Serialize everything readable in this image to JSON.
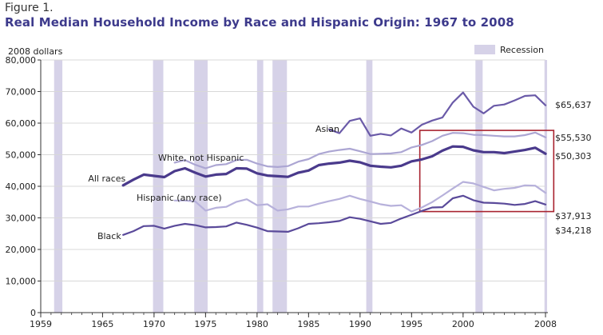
{
  "figure_label": "Figure 1.",
  "title": "Real Median Household Income by Race and Hispanic Origin: 1967 to 2008",
  "chart_data": {
    "type": "line",
    "ylabel": "2008 dollars",
    "xlim": [
      1959,
      2008
    ],
    "ylim": [
      0,
      80000
    ],
    "xticks": [
      1959,
      1965,
      1970,
      1975,
      1980,
      1985,
      1990,
      1995,
      2000,
      2008
    ],
    "xtick_labels": [
      "1959",
      "1965",
      "1970",
      "1975",
      "1980",
      "1985",
      "1990",
      "1995",
      "2000",
      "2008"
    ],
    "yticks": [
      0,
      10000,
      20000,
      30000,
      40000,
      50000,
      60000,
      70000,
      80000
    ],
    "ytick_labels": [
      "0",
      "10,000",
      "20,000",
      "30,000",
      "40,000",
      "50,000",
      "60,000",
      "70,000",
      "80,000"
    ],
    "legend": {
      "label": "Recession",
      "color": "#d6d2e8",
      "placement": "top-right"
    },
    "recessions": [
      [
        1960.3,
        1961.1
      ],
      [
        1969.9,
        1970.9
      ],
      [
        1973.9,
        1975.2
      ],
      [
        1980.0,
        1980.6
      ],
      [
        1981.5,
        1982.9
      ],
      [
        1990.6,
        1991.2
      ],
      [
        2001.2,
        2001.9
      ],
      [
        2007.9,
        2008.5
      ]
    ],
    "highlight_box": {
      "x": [
        1995.8,
        2008.8
      ],
      "y": [
        32000,
        57700
      ],
      "color": "#a8232f"
    },
    "series": [
      {
        "name": "Asian",
        "color": "#6a5aa8",
        "width": 2.2,
        "end_label": "$65,637",
        "x": [
          1987,
          1988,
          1989,
          1990,
          1991,
          1992,
          1993,
          1994,
          1995,
          1996,
          1997,
          1998,
          1999,
          2000,
          2001,
          2002,
          2003,
          2004,
          2005,
          2006,
          2007,
          2008
        ],
        "y": [
          58000,
          56800,
          60700,
          61500,
          56000,
          56600,
          56100,
          58300,
          57000,
          59500,
          60800,
          61800,
          66500,
          69700,
          65200,
          63100,
          65500,
          65900,
          67200,
          68600,
          68800,
          65637
        ]
      },
      {
        "name": "White, not Hispanic",
        "color": "#aca6d3",
        "width": 2.2,
        "end_label": "$55,530",
        "x": [
          1972,
          1973,
          1974,
          1975,
          1976,
          1977,
          1978,
          1979,
          1980,
          1981,
          1982,
          1983,
          1984,
          1985,
          1986,
          1987,
          1988,
          1989,
          1990,
          1991,
          1992,
          1993,
          1994,
          1995,
          1996,
          1997,
          1998,
          1999,
          2000,
          2001,
          2002,
          2003,
          2004,
          2005,
          2006,
          2007,
          2008
        ],
        "y": [
          47500,
          48300,
          46800,
          45700,
          46700,
          47000,
          48300,
          48400,
          47200,
          46300,
          46100,
          46400,
          47800,
          48600,
          50200,
          51000,
          51500,
          51900,
          51100,
          50200,
          50300,
          50400,
          50800,
          52300,
          53100,
          54300,
          56000,
          56900,
          56800,
          56300,
          56200,
          56000,
          55800,
          55800,
          56200,
          57000,
          55530
        ]
      },
      {
        "name": "All races",
        "color": "#4a3a8c",
        "width": 3.2,
        "end_label": "$50,303",
        "x": [
          1967,
          1968,
          1969,
          1970,
          1971,
          1972,
          1973,
          1974,
          1975,
          1976,
          1977,
          1978,
          1979,
          1980,
          1981,
          1982,
          1983,
          1984,
          1985,
          1986,
          1987,
          1988,
          1989,
          1990,
          1991,
          1992,
          1993,
          1994,
          1995,
          1996,
          1997,
          1998,
          1999,
          2000,
          2001,
          2002,
          2003,
          2004,
          2005,
          2006,
          2007,
          2008
        ],
        "y": [
          40300,
          42100,
          43700,
          43300,
          42900,
          44800,
          45700,
          44300,
          43100,
          43700,
          43900,
          45700,
          45600,
          44100,
          43400,
          43200,
          43000,
          44300,
          45000,
          46700,
          47200,
          47500,
          48100,
          47600,
          46500,
          46200,
          46000,
          46500,
          47900,
          48500,
          49500,
          51300,
          52600,
          52500,
          51400,
          50800,
          50800,
          50500,
          51000,
          51500,
          52200,
          50303
        ]
      },
      {
        "name": "Hispanic (any race)",
        "color": "#b7b1db",
        "width": 2.2,
        "end_label": "$37,913",
        "x": [
          1972,
          1973,
          1974,
          1975,
          1976,
          1977,
          1978,
          1979,
          1980,
          1981,
          1982,
          1983,
          1984,
          1985,
          1986,
          1987,
          1988,
          1989,
          1990,
          1991,
          1992,
          1993,
          1994,
          1995,
          1996,
          1997,
          1998,
          1999,
          2000,
          2001,
          2002,
          2003,
          2004,
          2005,
          2006,
          2007,
          2008
        ],
        "y": [
          35500,
          35500,
          35200,
          32300,
          33200,
          33500,
          35100,
          35900,
          34000,
          34300,
          32300,
          32700,
          33600,
          33600,
          34500,
          35300,
          36000,
          37000,
          36000,
          35200,
          34300,
          33800,
          34000,
          32000,
          33300,
          35000,
          37100,
          39300,
          41400,
          40900,
          39800,
          38700,
          39200,
          39500,
          40300,
          40200,
          37913
        ]
      },
      {
        "name": "Black",
        "color": "#5a4a9a",
        "width": 2.2,
        "end_label": "$34,218",
        "x": [
          1967,
          1968,
          1969,
          1970,
          1971,
          1972,
          1973,
          1974,
          1975,
          1976,
          1977,
          1978,
          1979,
          1980,
          1981,
          1982,
          1983,
          1984,
          1985,
          1986,
          1987,
          1988,
          1989,
          1990,
          1991,
          1992,
          1993,
          1994,
          1995,
          1996,
          1997,
          1998,
          1999,
          2000,
          2001,
          2002,
          2003,
          2004,
          2005,
          2006,
          2007,
          2008
        ],
        "y": [
          24600,
          25800,
          27400,
          27500,
          26600,
          27500,
          28100,
          27700,
          27000,
          27100,
          27300,
          28500,
          27800,
          26900,
          25800,
          25700,
          25600,
          26700,
          28100,
          28300,
          28600,
          29000,
          30200,
          29700,
          28900,
          28100,
          28400,
          29800,
          31000,
          32200,
          33300,
          33400,
          36200,
          37000,
          35600,
          34800,
          34700,
          34500,
          34100,
          34400,
          35300,
          34218
        ]
      }
    ],
    "annotations": [
      {
        "text": "Asian",
        "x": 1988.0,
        "y": 57200,
        "anchor": "end"
      },
      {
        "text": "White, not Hispanic",
        "x": 1970.4,
        "y": 48100,
        "anchor": "start"
      },
      {
        "text": "All races",
        "x": 1963.6,
        "y": 41500,
        "anchor": "start"
      },
      {
        "text": "Hispanic (any race)",
        "x": 1968.3,
        "y": 35400,
        "anchor": "start"
      },
      {
        "text": "Black",
        "x": 1964.5,
        "y": 23300,
        "anchor": "start"
      }
    ]
  }
}
